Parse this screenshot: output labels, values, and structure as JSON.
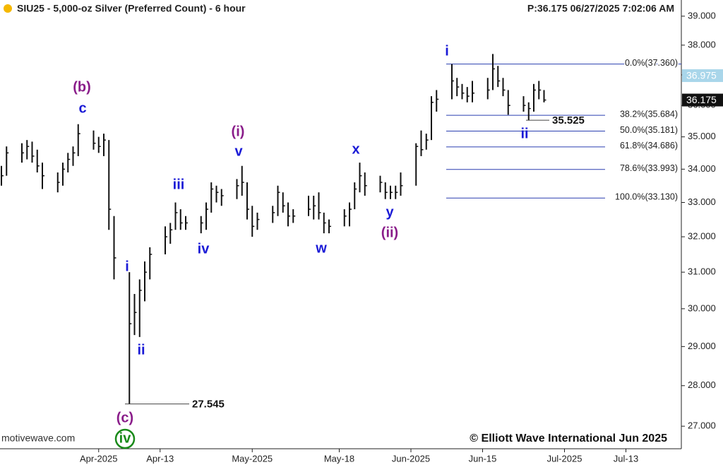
{
  "chart_data": {
    "type": "ohlc",
    "title": "SIU25 - 5,000-oz Silver (Preferred Count) - 6 hour",
    "info": "P:36.175  06/27/2025 7:02:06 AM",
    "watermark": "motivewave.com",
    "copyright": "© Elliott Wave International Jun 2025",
    "log_scale": true,
    "color": "#111111",
    "x": [
      "2025-03-13",
      "2025-03-14",
      "2025-03-17",
      "2025-03-18",
      "2025-03-19",
      "2025-03-20",
      "2025-03-21",
      "2025-03-24",
      "2025-03-25",
      "2025-03-26",
      "2025-03-27",
      "2025-03-28",
      "2025-03-31",
      "2025-04-01",
      "2025-04-02",
      "2025-04-03",
      "2025-04-04",
      "2025-04-07",
      "2025-04-08",
      "2025-04-09",
      "2025-04-10",
      "2025-04-11",
      "2025-04-14",
      "2025-04-15",
      "2025-04-16",
      "2025-04-17",
      "2025-04-18",
      "2025-04-21",
      "2025-04-22",
      "2025-04-23",
      "2025-04-24",
      "2025-04-25",
      "2025-04-28",
      "2025-04-29",
      "2025-04-30",
      "2025-05-01",
      "2025-05-02",
      "2025-05-05",
      "2025-05-06",
      "2025-05-07",
      "2025-05-08",
      "2025-05-09",
      "2025-05-12",
      "2025-05-13",
      "2025-05-14",
      "2025-05-15",
      "2025-05-16",
      "2025-05-19",
      "2025-05-20",
      "2025-05-21",
      "2025-05-22",
      "2025-05-23",
      "2025-05-26",
      "2025-05-27",
      "2025-05-28",
      "2025-05-29",
      "2025-05-30",
      "2025-06-02",
      "2025-06-03",
      "2025-06-04",
      "2025-06-05",
      "2025-06-06",
      "2025-06-09",
      "2025-06-10",
      "2025-06-11",
      "2025-06-12",
      "2025-06-13",
      "2025-06-16",
      "2025-06-17",
      "2025-06-18",
      "2025-06-19",
      "2025-06-20",
      "2025-06-23",
      "2025-06-24",
      "2025-06-25",
      "2025-06-26",
      "2025-06-27"
    ],
    "high": [
      34.1,
      34.7,
      34.8,
      34.9,
      34.85,
      34.6,
      34.2,
      33.9,
      34.2,
      34.5,
      34.7,
      35.4,
      35.2,
      35.0,
      35.1,
      34.9,
      32.6,
      31.0,
      30.4,
      30.8,
      31.3,
      31.7,
      32.3,
      32.4,
      33.0,
      32.8,
      32.6,
      32.6,
      33.0,
      33.6,
      33.5,
      33.4,
      33.7,
      34.1,
      33.6,
      32.9,
      32.7,
      32.9,
      33.5,
      33.3,
      33.0,
      32.8,
      33.2,
      33.2,
      33.3,
      32.7,
      32.5,
      32.8,
      33.0,
      33.6,
      34.2,
      33.9,
      33.8,
      33.6,
      33.5,
      33.5,
      33.9,
      34.8,
      35.2,
      35.1,
      36.3,
      36.5,
      37.36,
      36.9,
      36.7,
      36.6,
      36.8,
      36.9,
      37.7,
      37.3,
      36.9,
      36.5,
      36.3,
      36.1,
      36.7,
      36.8,
      36.5
    ],
    "low": [
      33.5,
      33.8,
      34.2,
      34.3,
      34.2,
      33.9,
      33.4,
      33.3,
      33.5,
      33.9,
      34.1,
      34.4,
      34.6,
      34.5,
      34.4,
      32.2,
      30.8,
      27.545,
      29.3,
      29.25,
      30.2,
      30.8,
      31.5,
      31.8,
      32.2,
      32.2,
      32.2,
      32.1,
      32.2,
      32.7,
      33.0,
      32.9,
      33.1,
      33.2,
      32.5,
      32.0,
      32.2,
      32.4,
      32.6,
      32.7,
      32.3,
      32.4,
      32.6,
      32.5,
      32.5,
      32.1,
      32.1,
      32.3,
      32.3,
      32.8,
      33.3,
      33.2,
      33.3,
      33.1,
      33.1,
      33.1,
      33.2,
      33.5,
      34.4,
      34.6,
      34.9,
      35.8,
      36.2,
      36.3,
      36.2,
      36.1,
      36.1,
      36.2,
      36.5,
      36.6,
      36.3,
      35.7,
      35.8,
      35.525,
      35.8,
      36.2,
      36.1
    ],
    "close": [
      33.8,
      34.5,
      34.5,
      34.7,
      34.4,
      34.1,
      33.8,
      33.6,
      34.0,
      34.3,
      34.5,
      35.1,
      34.8,
      34.7,
      34.9,
      32.8,
      31.4,
      29.6,
      29.9,
      30.5,
      31.0,
      31.5,
      32.0,
      32.2,
      32.7,
      32.4,
      32.4,
      32.4,
      32.8,
      33.4,
      33.3,
      33.2,
      33.5,
      33.6,
      32.8,
      32.3,
      32.5,
      32.7,
      33.3,
      32.9,
      32.6,
      32.6,
      32.8,
      32.9,
      32.7,
      32.4,
      32.3,
      32.6,
      32.8,
      33.4,
      33.8,
      33.5,
      33.6,
      33.3,
      33.3,
      33.3,
      33.5,
      34.7,
      34.6,
      34.9,
      36.1,
      36.2,
      36.8,
      36.6,
      36.4,
      36.3,
      36.4,
      36.5,
      37.2,
      36.8,
      36.5,
      36.0,
      36.0,
      35.9,
      36.5,
      36.5,
      36.175
    ],
    "xlim": [
      "2025-03-13",
      "2025-07-23"
    ],
    "xticks": [
      {
        "value": "2025-04-01",
        "label": "Apr-2025"
      },
      {
        "value": "2025-04-13",
        "label": "Apr-13"
      },
      {
        "value": "2025-05-01",
        "label": "May-2025"
      },
      {
        "value": "2025-05-18",
        "label": "May-18"
      },
      {
        "value": "2025-06-01",
        "label": "Jun-2025"
      },
      {
        "value": "2025-06-15",
        "label": "Jun-15"
      },
      {
        "value": "2025-07-01",
        "label": "Jul-2025"
      },
      {
        "value": "2025-07-13",
        "label": "Jul-13"
      }
    ],
    "ylim": [
      26.46,
      39.57
    ],
    "yticks": [
      {
        "value": 27,
        "label": "27.000"
      },
      {
        "value": 28,
        "label": "28.000"
      },
      {
        "value": 29,
        "label": "29.000"
      },
      {
        "value": 30,
        "label": "30.000"
      },
      {
        "value": 31,
        "label": "31.000"
      },
      {
        "value": 32,
        "label": "32.000"
      },
      {
        "value": 33,
        "label": "33.000"
      },
      {
        "value": 34,
        "label": "34.000"
      },
      {
        "value": 35,
        "label": "35.000"
      },
      {
        "value": 36,
        "label": "36.000"
      },
      {
        "value": 37,
        "label": "37.000"
      },
      {
        "value": 38,
        "label": "38.000"
      },
      {
        "value": 39,
        "label": "39.000"
      }
    ],
    "fib_levels": [
      {
        "value": 37.36,
        "label": "0.0%(37.360)"
      },
      {
        "value": 35.684,
        "label": "38.2%(35.684)"
      },
      {
        "value": 35.181,
        "label": "50.0%(35.181)"
      },
      {
        "value": 34.686,
        "label": "61.8%(34.686)"
      },
      {
        "value": 33.993,
        "label": "78.6%(33.993)"
      },
      {
        "value": 33.13,
        "label": "100.0%(33.130)"
      }
    ],
    "price_tags": [
      36.975,
      36.175
    ],
    "annotations": [
      27.545,
      35.525
    ],
    "wave_labels": [
      "(b)",
      "c",
      "(i)",
      "v",
      "iii",
      "iv",
      "w",
      "x",
      "y",
      "(ii)",
      "i",
      "ii",
      "i",
      "ii",
      "(c)",
      "iv"
    ]
  }
}
